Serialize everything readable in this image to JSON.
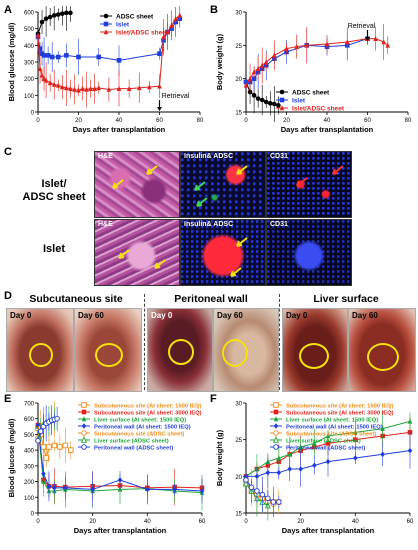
{
  "panels": {
    "A": "A",
    "B": "B",
    "C": "C",
    "D": "D",
    "E": "E",
    "F": "F"
  },
  "chart_data": [
    {
      "id": "A",
      "type": "line",
      "xlabel": "Days after transplantation",
      "ylabel": "Blood glucose (mg/dl)",
      "xlim": [
        0,
        80
      ],
      "ylim": [
        0,
        600
      ],
      "xticks": [
        0,
        20,
        40,
        60,
        80
      ],
      "yticks": [
        0,
        100,
        200,
        300,
        400,
        500,
        600
      ],
      "legend_position": "top-center",
      "annotation": "Retrieval",
      "annotation_x": 60,
      "series": [
        {
          "name": "ADSC sheet",
          "color": "#000000",
          "marker": "circle",
          "x": [
            0,
            2,
            4,
            6,
            8,
            10,
            12,
            14,
            16
          ],
          "y": [
            470,
            540,
            560,
            570,
            580,
            585,
            590,
            595,
            595
          ]
        },
        {
          "name": "Islet",
          "color": "#1f3ee0",
          "marker": "square",
          "x": [
            0,
            1,
            2,
            3,
            5,
            7,
            10,
            14,
            20,
            30,
            40,
            60,
            62,
            64,
            66,
            68,
            70
          ],
          "y": [
            450,
            380,
            350,
            340,
            340,
            330,
            330,
            340,
            330,
            330,
            310,
            350,
            430,
            480,
            500,
            540,
            560
          ]
        },
        {
          "name": "Islet/ADSC sheet",
          "color": "#e3231b",
          "marker": "triangle",
          "x": [
            0,
            1,
            2,
            3,
            4,
            6,
            8,
            10,
            12,
            14,
            16,
            18,
            20,
            22,
            24,
            26,
            28,
            30,
            35,
            40,
            45,
            50,
            55,
            60,
            62,
            64,
            66,
            68,
            70
          ],
          "y": [
            460,
            260,
            220,
            200,
            190,
            175,
            165,
            160,
            150,
            145,
            140,
            135,
            130,
            140,
            135,
            140,
            140,
            145,
            135,
            140,
            140,
            145,
            150,
            155,
            450,
            480,
            520,
            560,
            580
          ]
        }
      ]
    },
    {
      "id": "B",
      "type": "line",
      "xlabel": "Days after transplantation",
      "ylabel": "Body weight (g)",
      "xlim": [
        0,
        80
      ],
      "ylim": [
        15,
        30
      ],
      "xticks": [
        0,
        20,
        40,
        60,
        80
      ],
      "yticks": [
        15,
        20,
        25,
        30
      ],
      "legend_position": "bottom-center",
      "annotation": "Retrieval",
      "annotation_x": 60,
      "series": [
        {
          "name": "ADSC sheet",
          "color": "#000000",
          "marker": "circle",
          "x": [
            0,
            2,
            4,
            6,
            8,
            10,
            12,
            14,
            16
          ],
          "y": [
            19.5,
            18,
            17.5,
            17,
            16.8,
            16.5,
            16.3,
            16.2,
            16
          ]
        },
        {
          "name": "Islet",
          "color": "#1f3ee0",
          "marker": "square",
          "x": [
            0,
            2,
            4,
            6,
            8,
            10,
            14,
            20,
            30,
            40,
            50,
            60
          ],
          "y": [
            19.5,
            19.5,
            20,
            21,
            21.5,
            22,
            23,
            24,
            25,
            24.8,
            25,
            26
          ]
        },
        {
          "name": "Islet/ADSC sheet",
          "color": "#e3231b",
          "marker": "triangle",
          "x": [
            0,
            2,
            4,
            6,
            8,
            10,
            14,
            20,
            25,
            30,
            40,
            50,
            60,
            64,
            68,
            70
          ],
          "y": [
            19,
            20,
            21,
            21.5,
            22,
            22.5,
            23.5,
            24.5,
            24.8,
            25,
            25.2,
            25.5,
            26,
            26,
            25.5,
            25
          ]
        }
      ]
    },
    {
      "id": "E",
      "type": "line",
      "xlabel": "Days after transplantation",
      "ylabel": "Blood glucose (mg/dl)",
      "xlim": [
        0,
        60
      ],
      "ylim": [
        0,
        700
      ],
      "xticks": [
        0,
        20,
        40,
        60
      ],
      "yticks": [
        0,
        100,
        200,
        300,
        400,
        500,
        600,
        700
      ],
      "legend_position": "top-right",
      "series": [
        {
          "name": "Subcutaneous site (AI sheet: 1500 IEQ)",
          "color": "#f08c1a",
          "marker": "open-square",
          "x": [
            0,
            1,
            2,
            3,
            4,
            6,
            8,
            10,
            12
          ],
          "y": [
            540,
            500,
            420,
            350,
            420,
            430,
            420,
            430,
            400
          ]
        },
        {
          "name": "Subcutaneous site (AI sheet: 3000 IEQ)",
          "color": "#e3231b",
          "marker": "square",
          "x": [
            0,
            2,
            4,
            6,
            10,
            20,
            30,
            40,
            50,
            60
          ],
          "y": [
            560,
            210,
            170,
            170,
            165,
            170,
            175,
            160,
            165,
            160
          ]
        },
        {
          "name": "Liver surface (AI sheet: 1500 IEQ)",
          "color": "#1fa83a",
          "marker": "triangle",
          "x": [
            0,
            2,
            4,
            6,
            10,
            20,
            30,
            40,
            50,
            60
          ],
          "y": [
            550,
            200,
            140,
            140,
            150,
            140,
            150,
            155,
            140,
            130
          ]
        },
        {
          "name": "Peritoneal wall (AI sheet: 1500 IEQ)",
          "color": "#1f3ee0",
          "marker": "diamond",
          "x": [
            0,
            2,
            4,
            6,
            10,
            20,
            30,
            40,
            50,
            60
          ],
          "y": [
            560,
            250,
            170,
            160,
            160,
            150,
            210,
            150,
            150,
            140
          ]
        },
        {
          "name": "Subcutaneous site (ADSC sheet)",
          "color": "#f08c1a",
          "marker": "open-circle",
          "x": [
            0,
            1,
            2,
            3,
            4,
            5,
            6
          ],
          "y": [
            480,
            540,
            560,
            570,
            580,
            590,
            595
          ]
        },
        {
          "name": "Liver surface (ADSC sheet)",
          "color": "#1fa83a",
          "marker": "open-triangle",
          "x": [
            0,
            1,
            2,
            3,
            4,
            5,
            6
          ],
          "y": [
            470,
            530,
            560,
            575,
            585,
            590,
            600
          ]
        },
        {
          "name": "Peritoneal wall (ADSC sheet)",
          "color": "#1f3ee0",
          "marker": "open-circle",
          "x": [
            0,
            1,
            2,
            3,
            4,
            5,
            6,
            7
          ],
          "y": [
            460,
            520,
            550,
            570,
            580,
            590,
            595,
            600
          ]
        }
      ]
    },
    {
      "id": "F",
      "type": "line",
      "xlabel": "Days after transplantation",
      "ylabel": "Body weight (g)",
      "xlim": [
        0,
        60
      ],
      "ylim": [
        15,
        30
      ],
      "xticks": [
        0,
        20,
        40,
        60
      ],
      "yticks": [
        15,
        20,
        25,
        30
      ],
      "legend_position": "top-right",
      "series": [
        {
          "name": "Subcutaneous site (AI sheet: 1500 IEQ)",
          "color": "#f08c1a",
          "marker": "open-square",
          "x": [
            0,
            2,
            4,
            6,
            8,
            10,
            12
          ],
          "y": [
            19,
            18,
            17.5,
            17,
            16.8,
            16.5,
            16.5
          ]
        },
        {
          "name": "Subcutaneous site (AI sheet: 3000 IEQ)",
          "color": "#e3231b",
          "marker": "square",
          "x": [
            0,
            4,
            8,
            12,
            16,
            20,
            25,
            30,
            40,
            50,
            60
          ],
          "y": [
            20,
            21,
            21.5,
            22,
            23,
            23.5,
            24,
            24.5,
            25,
            25.5,
            26
          ]
        },
        {
          "name": "Liver surface (AI sheet: 1500 IEQ)",
          "color": "#1fa83a",
          "marker": "triangle",
          "x": [
            0,
            4,
            8,
            12,
            16,
            20,
            25,
            30,
            40,
            50,
            60
          ],
          "y": [
            20,
            21,
            22,
            22.5,
            23,
            24,
            24.5,
            25.5,
            26,
            26.5,
            27.5
          ]
        },
        {
          "name": "Peritoneal wall (AI sheet: 1500 IEQ)",
          "color": "#1f3ee0",
          "marker": "diamond",
          "x": [
            0,
            4,
            8,
            12,
            16,
            20,
            25,
            30,
            40,
            50,
            60
          ],
          "y": [
            20,
            20,
            20.5,
            20.5,
            21,
            21,
            21.5,
            22,
            22.5,
            23,
            23.5
          ]
        },
        {
          "name": "Subcutaneous site (ADSC sheet)",
          "color": "#f08c1a",
          "marker": "open-circle",
          "x": [
            0,
            2,
            4,
            6,
            8,
            10
          ],
          "y": [
            19.5,
            18.5,
            17.5,
            17,
            16.5,
            16.2
          ]
        },
        {
          "name": "Liver surface (ADSC sheet)",
          "color": "#1fa83a",
          "marker": "open-triangle",
          "x": [
            0,
            2,
            4,
            6,
            8
          ],
          "y": [
            19,
            18,
            17,
            16.5,
            16
          ]
        },
        {
          "name": "Peritoneal wall (ADSC sheet)",
          "color": "#1f3ee0",
          "marker": "open-circle",
          "x": [
            0,
            2,
            4,
            6,
            8,
            10,
            12
          ],
          "y": [
            19.5,
            18.5,
            18,
            17.5,
            17,
            16.5,
            16.5
          ]
        }
      ]
    }
  ],
  "panelC": {
    "row_labels": [
      "Islet/\nADSC sheet",
      "Islet"
    ],
    "stains": {
      "he": "H&E",
      "ins": "Insulin& ADSC",
      "cd31": "CD31"
    }
  },
  "panelD": {
    "sites": [
      "Subcutaneous site",
      "Peritoneal wall",
      "Liver surface"
    ],
    "day0": "Day 0",
    "day60": "Day 60"
  }
}
